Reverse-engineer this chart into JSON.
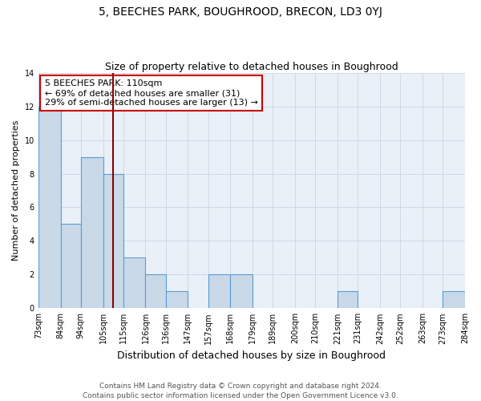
{
  "title": "5, BEECHES PARK, BOUGHROOD, BRECON, LD3 0YJ",
  "subtitle": "Size of property relative to detached houses in Boughrood",
  "xlabel": "Distribution of detached houses by size in Boughrood",
  "ylabel": "Number of detached properties",
  "bin_edges": [
    73,
    84,
    94,
    105,
    115,
    126,
    136,
    147,
    157,
    168,
    179,
    189,
    200,
    210,
    221,
    231,
    242,
    252,
    263,
    273,
    284
  ],
  "bin_labels": [
    "73sqm",
    "84sqm",
    "94sqm",
    "105sqm",
    "115sqm",
    "126sqm",
    "136sqm",
    "147sqm",
    "157sqm",
    "168sqm",
    "179sqm",
    "189sqm",
    "200sqm",
    "210sqm",
    "221sqm",
    "231sqm",
    "242sqm",
    "252sqm",
    "263sqm",
    "273sqm",
    "284sqm"
  ],
  "counts": [
    12,
    5,
    9,
    8,
    3,
    2,
    1,
    0,
    2,
    2,
    0,
    0,
    0,
    0,
    1,
    0,
    0,
    0,
    0,
    1
  ],
  "bar_color": "#c9d9e8",
  "bar_edge_color": "#5b9bd5",
  "reference_line_x": 110,
  "reference_line_color": "#8b0000",
  "annotation_line1": "5 BEECHES PARK: 110sqm",
  "annotation_line2": "← 69% of detached houses are smaller (31)",
  "annotation_line3": "29% of semi-detached houses are larger (13) →",
  "annotation_box_edge_color": "#cc0000",
  "ylim": [
    0,
    14
  ],
  "yticks": [
    0,
    2,
    4,
    6,
    8,
    10,
    12,
    14
  ],
  "grid_color": "#d0d8e4",
  "background_color": "#eaf0f8",
  "footer_text": "Contains HM Land Registry data © Crown copyright and database right 2024.\nContains public sector information licensed under the Open Government Licence v3.0.",
  "title_fontsize": 10,
  "subtitle_fontsize": 9,
  "xlabel_fontsize": 9,
  "ylabel_fontsize": 8,
  "annotation_fontsize": 8,
  "tick_fontsize": 7,
  "footer_fontsize": 6.5
}
